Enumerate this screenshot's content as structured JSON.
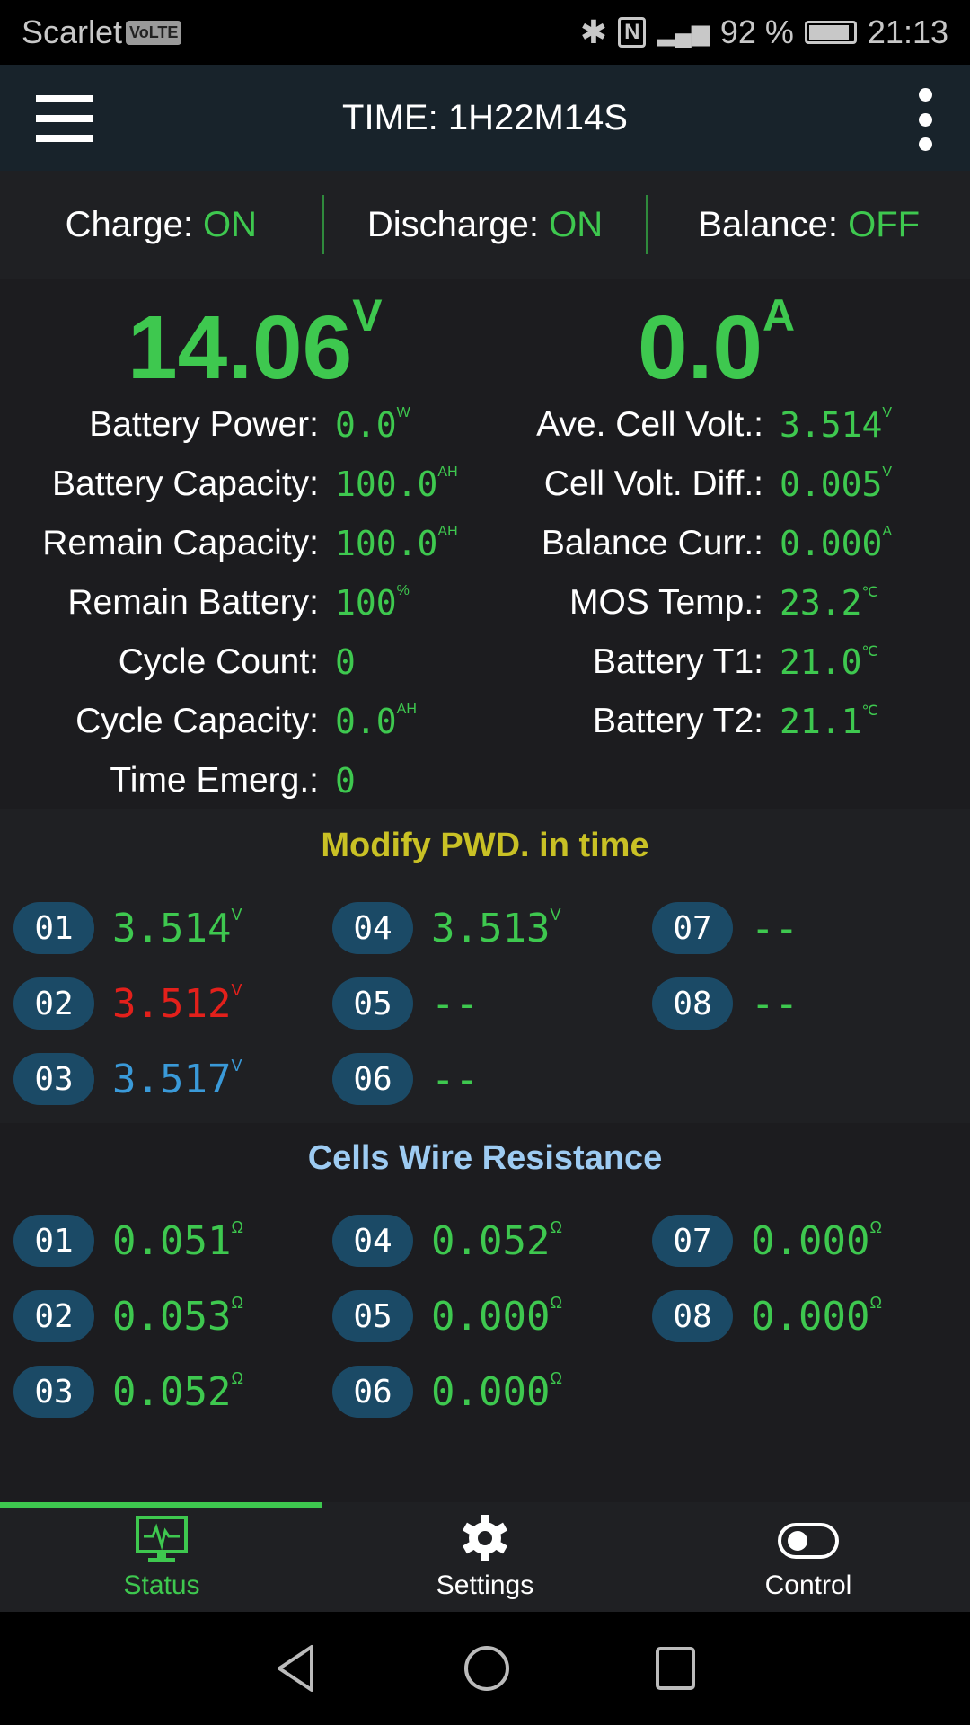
{
  "status_bar": {
    "carrier": "Scarlet",
    "volte": "VoLTE",
    "battery_pct": "92 %",
    "time": "21:13",
    "icons": [
      "bluetooth-icon",
      "nfc-icon",
      "signal-icon",
      "battery-icon"
    ]
  },
  "app_bar": {
    "title": "TIME: 1H22M14S",
    "menu_icon": "hamburger-icon",
    "overflow_icon": "more-vert-icon"
  },
  "flags": [
    {
      "label": "Charge: ",
      "value": "ON"
    },
    {
      "label": "Discharge: ",
      "value": "ON"
    },
    {
      "label": "Balance: ",
      "value": "OFF"
    }
  ],
  "voltage": {
    "value": "14.06",
    "unit": "V"
  },
  "current": {
    "value": "0.0",
    "unit": "A"
  },
  "left_stats": [
    {
      "label": "Battery Power:",
      "value": "0.0",
      "unit": "W"
    },
    {
      "label": "Battery Capacity:",
      "value": "100.0",
      "unit": "AH"
    },
    {
      "label": "Remain Capacity:",
      "value": "100.0",
      "unit": "AH"
    },
    {
      "label": "Remain Battery:",
      "value": "100",
      "unit": "%"
    },
    {
      "label": "Cycle Count:",
      "value": "0",
      "unit": ""
    },
    {
      "label": "Cycle Capacity:",
      "value": "0.0",
      "unit": "AH"
    },
    {
      "label": "Time Emerg.:",
      "value": "0",
      "unit": ""
    }
  ],
  "right_stats": [
    {
      "label": "Ave. Cell Volt.:",
      "value": "3.514",
      "unit": "V"
    },
    {
      "label": "Cell Volt. Diff.:",
      "value": "0.005",
      "unit": "V"
    },
    {
      "label": "Balance Curr.:",
      "value": "0.000",
      "unit": "A"
    },
    {
      "label": "MOS Temp.:",
      "value": "23.2",
      "unit": "℃"
    },
    {
      "label": "Battery T1:",
      "value": "21.0",
      "unit": "℃"
    },
    {
      "label": "Battery T2:",
      "value": "21.1",
      "unit": "℃"
    }
  ],
  "cell_voltages": {
    "title": "Modify PWD. in time",
    "title_color": "#c9c125",
    "cells": [
      {
        "id": "01",
        "value": "3.514",
        "unit": "V",
        "color": "#3ec84f"
      },
      {
        "id": "02",
        "value": "3.512",
        "unit": "V",
        "color": "#e3201b"
      },
      {
        "id": "03",
        "value": "3.517",
        "unit": "V",
        "color": "#3a9ad9"
      },
      {
        "id": "04",
        "value": "3.513",
        "unit": "V",
        "color": "#3ec84f"
      },
      {
        "id": "05",
        "value": "--",
        "unit": "",
        "color": "#3ec84f"
      },
      {
        "id": "06",
        "value": "--",
        "unit": "",
        "color": "#3ec84f"
      },
      {
        "id": "07",
        "value": "--",
        "unit": "",
        "color": "#3ec84f"
      },
      {
        "id": "08",
        "value": "--",
        "unit": "",
        "color": "#3ec84f"
      }
    ]
  },
  "wire_resistance": {
    "title": "Cells Wire Resistance",
    "title_color": "#9dcbf2",
    "cells": [
      {
        "id": "01",
        "value": "0.051",
        "unit": "Ω"
      },
      {
        "id": "02",
        "value": "0.053",
        "unit": "Ω"
      },
      {
        "id": "03",
        "value": "0.052",
        "unit": "Ω"
      },
      {
        "id": "04",
        "value": "0.052",
        "unit": "Ω"
      },
      {
        "id": "05",
        "value": "0.000",
        "unit": "Ω"
      },
      {
        "id": "06",
        "value": "0.000",
        "unit": "Ω"
      },
      {
        "id": "07",
        "value": "0.000",
        "unit": "Ω"
      },
      {
        "id": "08",
        "value": "0.000",
        "unit": "Ω"
      }
    ]
  },
  "bottom_nav": [
    {
      "label": "Status",
      "icon": "monitor-pulse-icon",
      "active": true
    },
    {
      "label": "Settings",
      "icon": "gear-icon",
      "active": false
    },
    {
      "label": "Control",
      "icon": "toggle-icon",
      "active": false
    }
  ],
  "accent": "#3ec84f"
}
